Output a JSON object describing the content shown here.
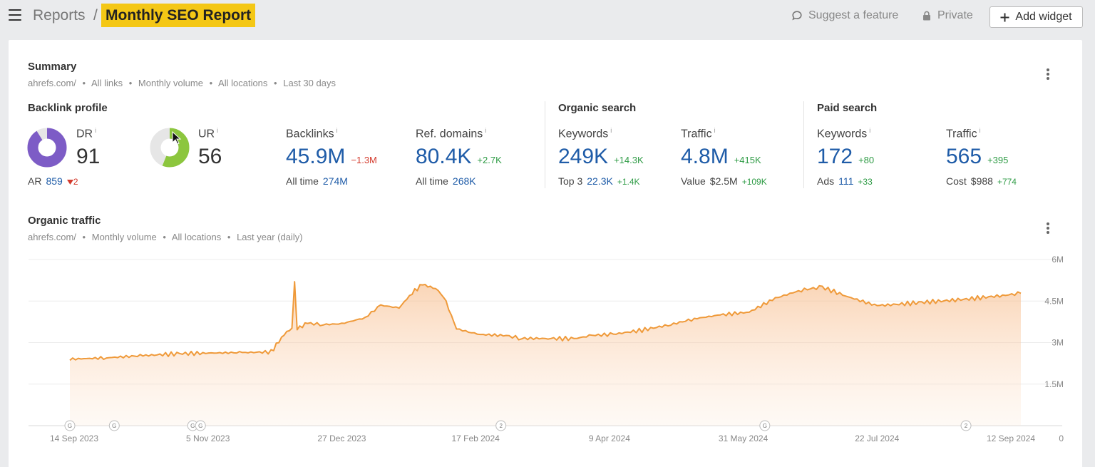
{
  "header": {
    "breadcrumb_root": "Reports",
    "breadcrumb_sep": "/",
    "title": "Monthly SEO Report",
    "suggest_label": "Suggest a feature",
    "private_label": "Private",
    "add_widget_label": "Add widget"
  },
  "summary": {
    "title": "Summary",
    "filters": [
      "ahrefs.com/",
      "All links",
      "Monthly volume",
      "All locations",
      "Last 30 days"
    ],
    "backlink_profile": {
      "title": "Backlink profile",
      "dr": {
        "label": "DR",
        "value": "91",
        "info": "i",
        "fraction": 0.91
      },
      "ar": {
        "label": "AR",
        "value": "859",
        "delta": "2"
      },
      "ur": {
        "label": "UR",
        "value": "56",
        "info": "i",
        "fraction": 0.56
      },
      "backlinks": {
        "label": "Backlinks",
        "info": "i",
        "value": "45.9M",
        "delta": "−1.3M",
        "foot_label": "All time",
        "foot_value": "274M"
      },
      "ref_domains": {
        "label": "Ref. domains",
        "info": "i",
        "value": "80.4K",
        "delta": "+2.7K",
        "foot_label": "All time",
        "foot_value": "268K"
      }
    },
    "organic_search": {
      "title": "Organic search",
      "keywords": {
        "label": "Keywords",
        "info": "i",
        "value": "249K",
        "delta": "+14.3K",
        "foot_label": "Top 3",
        "foot_value": "22.3K",
        "foot_delta": "+1.4K"
      },
      "traffic": {
        "label": "Traffic",
        "info": "i",
        "value": "4.8M",
        "delta": "+415K",
        "foot_label": "Value",
        "foot_value": "$2.5M",
        "foot_delta": "+109K"
      }
    },
    "paid_search": {
      "title": "Paid search",
      "keywords": {
        "label": "Keywords",
        "info": "i",
        "value": "172",
        "delta": "+80",
        "foot_label": "Ads",
        "foot_value": "111",
        "foot_delta": "+33"
      },
      "traffic": {
        "label": "Traffic",
        "info": "i",
        "value": "565",
        "delta": "+395",
        "foot_label": "Cost",
        "foot_value": "$988",
        "foot_delta": "+774"
      }
    }
  },
  "organic_traffic": {
    "title": "Organic traffic",
    "filters": [
      "ahrefs.com/",
      "Monthly volume",
      "All locations",
      "Last year (daily)"
    ]
  },
  "colors": {
    "accent_highlight": "#f4c715",
    "link_blue": "#1f5ca8",
    "positive": "#2e9b45",
    "negative": "#d33a2c",
    "dr_purple": "#7d5cc6",
    "ur_green": "#8cc63e",
    "line_orange": "#ef9a3a"
  },
  "chart_data": {
    "type": "area",
    "title": "Organic traffic",
    "xlabel": "",
    "ylabel": "",
    "x_ticks": [
      "14 Sep 2023",
      "5 Nov 2023",
      "27 Dec 2023",
      "17 Feb 2024",
      "9 Apr 2024",
      "31 May 2024",
      "22 Jul 2024",
      "12 Sep 2024"
    ],
    "y_ticks": [
      "0",
      "1.5M",
      "3M",
      "4.5M",
      "6M"
    ],
    "ylim": [
      0,
      6000000
    ],
    "grid": true,
    "series": [
      {
        "name": "",
        "points": [
          [
            "2023-09-14",
            2400000
          ],
          [
            "2023-09-28",
            2450000
          ],
          [
            "2023-10-12",
            2530000
          ],
          [
            "2023-10-26",
            2600000
          ],
          [
            "2023-11-05",
            2620000
          ],
          [
            "2023-11-19",
            2640000
          ],
          [
            "2023-11-30",
            2660000
          ],
          [
            "2023-12-05",
            3300000
          ],
          [
            "2023-12-08",
            3520000
          ],
          [
            "2023-12-09",
            5200000
          ],
          [
            "2023-12-10",
            3500000
          ],
          [
            "2023-12-14",
            3700000
          ],
          [
            "2023-12-20",
            3650000
          ],
          [
            "2023-12-27",
            3680000
          ],
          [
            "2024-01-05",
            3900000
          ],
          [
            "2024-01-11",
            4350000
          ],
          [
            "2024-01-18",
            4250000
          ],
          [
            "2024-01-23",
            4800000
          ],
          [
            "2024-01-27",
            5100000
          ],
          [
            "2024-02-01",
            4950000
          ],
          [
            "2024-02-04",
            4700000
          ],
          [
            "2024-02-09",
            3500000
          ],
          [
            "2024-02-17",
            3300000
          ],
          [
            "2024-02-28",
            3250000
          ],
          [
            "2024-03-05",
            3150000
          ],
          [
            "2024-03-15",
            3150000
          ],
          [
            "2024-03-25",
            3140000
          ],
          [
            "2024-04-01",
            3260000
          ],
          [
            "2024-04-09",
            3300000
          ],
          [
            "2024-04-20",
            3450000
          ],
          [
            "2024-05-01",
            3650000
          ],
          [
            "2024-05-10",
            3860000
          ],
          [
            "2024-05-20",
            4000000
          ],
          [
            "2024-05-31",
            4100000
          ],
          [
            "2024-06-10",
            4600000
          ],
          [
            "2024-06-20",
            4900000
          ],
          [
            "2024-06-28",
            5000000
          ],
          [
            "2024-07-08",
            4650000
          ],
          [
            "2024-07-18",
            4350000
          ],
          [
            "2024-07-22",
            4350000
          ],
          [
            "2024-08-05",
            4450000
          ],
          [
            "2024-08-20",
            4550000
          ],
          [
            "2024-09-05",
            4700000
          ],
          [
            "2024-09-12",
            4780000
          ]
        ]
      }
    ],
    "event_markers": [
      {
        "date": "2023-09-14",
        "label": "G"
      },
      {
        "date": "2023-10-01",
        "label": "G"
      },
      {
        "date": "2023-10-31",
        "label": "G"
      },
      {
        "date": "2023-11-03",
        "label": "G"
      },
      {
        "date": "2024-02-26",
        "label": "2"
      },
      {
        "date": "2024-06-06",
        "label": "G"
      },
      {
        "date": "2024-08-22",
        "label": "2"
      }
    ]
  }
}
